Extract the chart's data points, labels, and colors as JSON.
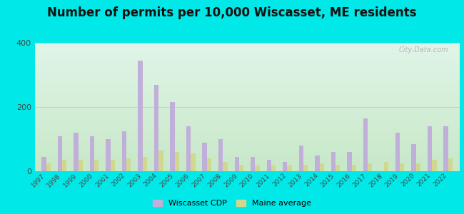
{
  "title": "Number of permits per 10,000 Wiscasset, ME residents",
  "years": [
    1997,
    1998,
    1999,
    2000,
    2001,
    2002,
    2003,
    2004,
    2005,
    2006,
    2007,
    2008,
    2009,
    2010,
    2011,
    2012,
    2013,
    2014,
    2015,
    2016,
    2017,
    2018,
    2019,
    2020,
    2021,
    2022
  ],
  "wiscasset": [
    45,
    110,
    120,
    110,
    100,
    125,
    345,
    270,
    215,
    140,
    90,
    100,
    45,
    45,
    35,
    30,
    80,
    50,
    60,
    60,
    165,
    0,
    120,
    85,
    140,
    140
  ],
  "maine_avg": [
    25,
    35,
    35,
    35,
    35,
    40,
    45,
    65,
    60,
    55,
    40,
    30,
    20,
    18,
    18,
    18,
    20,
    25,
    20,
    20,
    25,
    30,
    25,
    25,
    35,
    40
  ],
  "wiscasset_color": "#c0afd8",
  "maine_color": "#d0d890",
  "background_outer": "#00e8e8",
  "plot_bg_top": "#e0f5e8",
  "plot_bg_bottom": "#c8e8c8",
  "grid_color": "#cccccc",
  "ylim": [
    0,
    400
  ],
  "yticks": [
    0,
    200,
    400
  ],
  "title_fontsize": 12,
  "watermark": "City-Data.com",
  "bar_width": 0.28
}
